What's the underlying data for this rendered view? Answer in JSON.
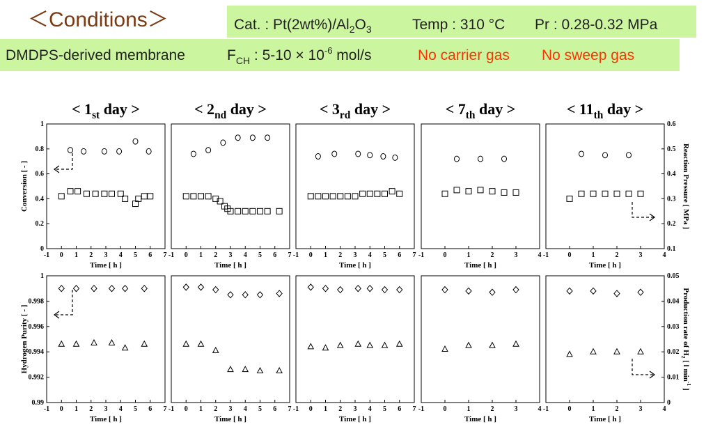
{
  "header": {
    "title": "＜Conditions＞",
    "line1": [
      "Cat. : Pt(2wt%)/Al",
      "2",
      "O",
      "3",
      "Temp : 310 °C",
      "Pr : 0.28-0.32 MPa"
    ],
    "line2": [
      "DMDPS-derived membrane",
      "F",
      "CH",
      " : 5-10 × 10",
      "-6",
      " mol/s",
      "No carrier gas",
      "No sweep gas"
    ]
  },
  "chart_data": [
    {
      "type": "scatter",
      "title": [
        "< 1",
        "st",
        " day >"
      ],
      "xlabel": "Time [ h ]",
      "ylabel": "Conversion [ - ]",
      "xlim": [
        -1,
        7
      ],
      "xticks": [
        -1,
        0,
        1,
        2,
        3,
        4,
        5,
        6,
        7
      ],
      "ylim": [
        0,
        1
      ],
      "yticks": [
        0,
        0.2,
        0.4,
        0.6,
        0.8,
        1
      ],
      "y2lim": [
        0.1,
        0.6
      ],
      "series": [
        {
          "marker": "circle",
          "color": "#000000",
          "x": [
            0.6,
            1.5,
            2.9,
            3.9,
            5.0,
            5.9
          ],
          "values": [
            0.79,
            0.78,
            0.78,
            0.78,
            0.86,
            0.78
          ]
        },
        {
          "marker": "square",
          "color": "#000000",
          "axis": "y2",
          "x": [
            0,
            0.6,
            1.1,
            1.7,
            2.3,
            2.9,
            3.4,
            4.0,
            4.3,
            5.0,
            5.2,
            5.6,
            6.0
          ],
          "values": [
            0.31,
            0.33,
            0.33,
            0.32,
            0.32,
            0.32,
            0.32,
            0.32,
            0.3,
            0.28,
            0.3,
            0.31,
            0.31
          ]
        }
      ]
    },
    {
      "type": "scatter",
      "title": [
        "< 2",
        "nd",
        " day >"
      ],
      "xlabel": "Time [ h ]",
      "xlim": [
        -1,
        7
      ],
      "xticks": [
        -1,
        0,
        1,
        2,
        3,
        4,
        5,
        6,
        7
      ],
      "ylim": [
        0,
        1
      ],
      "y2lim": [
        0.1,
        0.6
      ],
      "series": [
        {
          "marker": "circle",
          "color": "#000000",
          "x": [
            0.5,
            1.5,
            2.5,
            3.5,
            4.5,
            5.5
          ],
          "values": [
            0.76,
            0.79,
            0.85,
            0.89,
            0.89,
            0.89
          ]
        },
        {
          "marker": "square",
          "color": "#000000",
          "axis": "y2",
          "x": [
            0,
            0.5,
            1,
            1.5,
            2,
            2.3,
            2.6,
            2.8,
            3,
            3.5,
            4,
            4.5,
            5,
            5.5,
            6.3
          ],
          "values": [
            0.31,
            0.31,
            0.31,
            0.31,
            0.3,
            0.29,
            0.27,
            0.26,
            0.25,
            0.25,
            0.25,
            0.25,
            0.25,
            0.25,
            0.25
          ]
        }
      ]
    },
    {
      "type": "scatter",
      "title": [
        "< 3",
        "rd",
        " day >"
      ],
      "xlabel": "Time [ h ]",
      "xlim": [
        -1,
        7
      ],
      "xticks": [
        -1,
        0,
        1,
        2,
        3,
        4,
        5,
        6,
        7
      ],
      "ylim": [
        0,
        1
      ],
      "y2lim": [
        0.1,
        0.6
      ],
      "series": [
        {
          "marker": "circle",
          "color": "#000000",
          "x": [
            0.5,
            1.6,
            3.2,
            4.0,
            4.9,
            5.7
          ],
          "values": [
            0.74,
            0.76,
            0.76,
            0.75,
            0.74,
            0.73
          ]
        },
        {
          "marker": "square",
          "color": "#000000",
          "axis": "y2",
          "x": [
            0,
            0.5,
            1,
            1.5,
            2,
            2.5,
            3,
            3.5,
            4,
            4.5,
            5,
            5.5,
            6
          ],
          "values": [
            0.31,
            0.31,
            0.31,
            0.31,
            0.31,
            0.31,
            0.31,
            0.32,
            0.32,
            0.32,
            0.32,
            0.33,
            0.32
          ]
        }
      ]
    },
    {
      "type": "scatter",
      "title": [
        "< 7",
        "th",
        " day >"
      ],
      "xlabel": "Time [ h ]",
      "xlim": [
        -1,
        4
      ],
      "xticks": [
        -1,
        0,
        1,
        2,
        3,
        4
      ],
      "ylim": [
        0,
        1
      ],
      "y2lim": [
        0.1,
        0.6
      ],
      "series": [
        {
          "marker": "circle",
          "color": "#000000",
          "x": [
            0.5,
            1.5,
            2.5
          ],
          "values": [
            0.72,
            0.72,
            0.72
          ]
        },
        {
          "marker": "square",
          "color": "#000000",
          "axis": "y2",
          "x": [
            0,
            0.5,
            1,
            1.5,
            2,
            2.5,
            3
          ],
          "values": [
            0.32,
            0.335,
            0.33,
            0.335,
            0.33,
            0.325,
            0.325
          ]
        }
      ]
    },
    {
      "type": "scatter",
      "title": [
        "< 11",
        "th",
        " day >"
      ],
      "xlabel": "Time [ h ]",
      "y2label": "Reaction Pressure [ MPa ]",
      "xlim": [
        -1,
        4
      ],
      "xticks": [
        -1,
        0,
        1,
        2,
        3,
        4
      ],
      "ylim": [
        0,
        1
      ],
      "y2lim": [
        0.1,
        0.6
      ],
      "y2ticks": [
        0.1,
        0.2,
        0.3,
        0.4,
        0.5,
        0.6
      ],
      "series": [
        {
          "marker": "circle",
          "color": "#000000",
          "x": [
            0.5,
            1.5,
            2.5
          ],
          "values": [
            0.76,
            0.75,
            0.75
          ]
        },
        {
          "marker": "square",
          "color": "#000000",
          "axis": "y2",
          "x": [
            0,
            0.5,
            1,
            1.5,
            2,
            2.5,
            3
          ],
          "values": [
            0.3,
            0.32,
            0.32,
            0.32,
            0.32,
            0.32,
            0.32
          ]
        }
      ]
    },
    {
      "type": "scatter",
      "xlabel": "Time [ h ]",
      "ylabel": "Hydrogen Purity [ - ]",
      "xlim": [
        -1,
        7
      ],
      "xticks": [
        -1,
        0,
        1,
        2,
        3,
        4,
        5,
        6,
        7
      ],
      "ylim": [
        0.99,
        1
      ],
      "yticks": [
        0.99,
        0.992,
        0.994,
        0.996,
        0.998,
        1
      ],
      "y2lim": [
        0,
        0.05
      ],
      "series": [
        {
          "marker": "diamond",
          "color": "#000000",
          "x": [
            0,
            1,
            2.2,
            3.4,
            4.3,
            5.6
          ],
          "values": [
            0.999,
            0.999,
            0.999,
            0.999,
            0.999,
            0.999
          ]
        },
        {
          "marker": "triangle",
          "color": "#000000",
          "axis": "y2",
          "x": [
            0,
            1,
            2.2,
            3.4,
            4.3,
            5.6
          ],
          "values": [
            0.023,
            0.023,
            0.0235,
            0.0235,
            0.0215,
            0.023
          ]
        }
      ]
    },
    {
      "type": "scatter",
      "xlabel": "Time [ h ]",
      "xlim": [
        -1,
        7
      ],
      "xticks": [
        -1,
        0,
        1,
        2,
        3,
        4,
        5,
        6,
        7
      ],
      "ylim": [
        0.99,
        1
      ],
      "y2lim": [
        0,
        0.05
      ],
      "series": [
        {
          "marker": "diamond",
          "color": "#000000",
          "x": [
            0,
            1,
            2,
            3,
            4,
            5,
            6.3
          ],
          "values": [
            0.9991,
            0.9991,
            0.9989,
            0.9985,
            0.9985,
            0.9985,
            0.9986
          ]
        },
        {
          "marker": "triangle",
          "color": "#000000",
          "axis": "y2",
          "x": [
            0,
            1,
            2,
            3,
            4,
            5,
            6.3
          ],
          "values": [
            0.023,
            0.023,
            0.0205,
            0.013,
            0.013,
            0.0125,
            0.0125
          ]
        }
      ]
    },
    {
      "type": "scatter",
      "xlabel": "Time [ h ]",
      "xlim": [
        -1,
        7
      ],
      "xticks": [
        -1,
        0,
        1,
        2,
        3,
        4,
        5,
        6,
        7
      ],
      "ylim": [
        0.99,
        1
      ],
      "y2lim": [
        0,
        0.05
      ],
      "series": [
        {
          "marker": "diamond",
          "color": "#000000",
          "x": [
            0,
            1,
            2,
            3.2,
            4,
            5,
            6
          ],
          "values": [
            0.9991,
            0.999,
            0.9989,
            0.999,
            0.999,
            0.9989,
            0.9989
          ]
        },
        {
          "marker": "triangle",
          "color": "#000000",
          "axis": "y2",
          "x": [
            0,
            1,
            2,
            3.2,
            4,
            5,
            6
          ],
          "values": [
            0.022,
            0.0215,
            0.0225,
            0.023,
            0.0225,
            0.0225,
            0.023
          ]
        }
      ]
    },
    {
      "type": "scatter",
      "xlabel": "Time [ h ]",
      "xlim": [
        -1,
        4
      ],
      "xticks": [
        -1,
        0,
        1,
        2,
        3,
        4
      ],
      "ylim": [
        0.99,
        1
      ],
      "y2lim": [
        0,
        0.05
      ],
      "series": [
        {
          "marker": "diamond",
          "color": "#000000",
          "x": [
            0,
            1,
            2,
            3
          ],
          "values": [
            0.9989,
            0.9988,
            0.9987,
            0.9989
          ]
        },
        {
          "marker": "triangle",
          "color": "#000000",
          "axis": "y2",
          "x": [
            0,
            1,
            2,
            3
          ],
          "values": [
            0.021,
            0.0225,
            0.0225,
            0.023
          ]
        }
      ]
    },
    {
      "type": "scatter",
      "xlabel": "Time [ h ]",
      "y2label": [
        "Production rate of H",
        "2",
        " [ l min",
        "-1",
        " ]"
      ],
      "xlim": [
        -1,
        4
      ],
      "xticks": [
        -1,
        0,
        1,
        2,
        3,
        4
      ],
      "ylim": [
        0.99,
        1
      ],
      "y2lim": [
        0,
        0.05
      ],
      "y2ticks": [
        0,
        0.01,
        0.02,
        0.03,
        0.04,
        0.05
      ],
      "series": [
        {
          "marker": "diamond",
          "color": "#000000",
          "x": [
            0,
            1,
            2,
            3
          ],
          "values": [
            0.9988,
            0.9988,
            0.9986,
            0.9987
          ]
        },
        {
          "marker": "triangle",
          "color": "#000000",
          "axis": "y2",
          "x": [
            0,
            1,
            2,
            3
          ],
          "values": [
            0.019,
            0.02,
            0.02,
            0.02
          ]
        }
      ]
    }
  ]
}
